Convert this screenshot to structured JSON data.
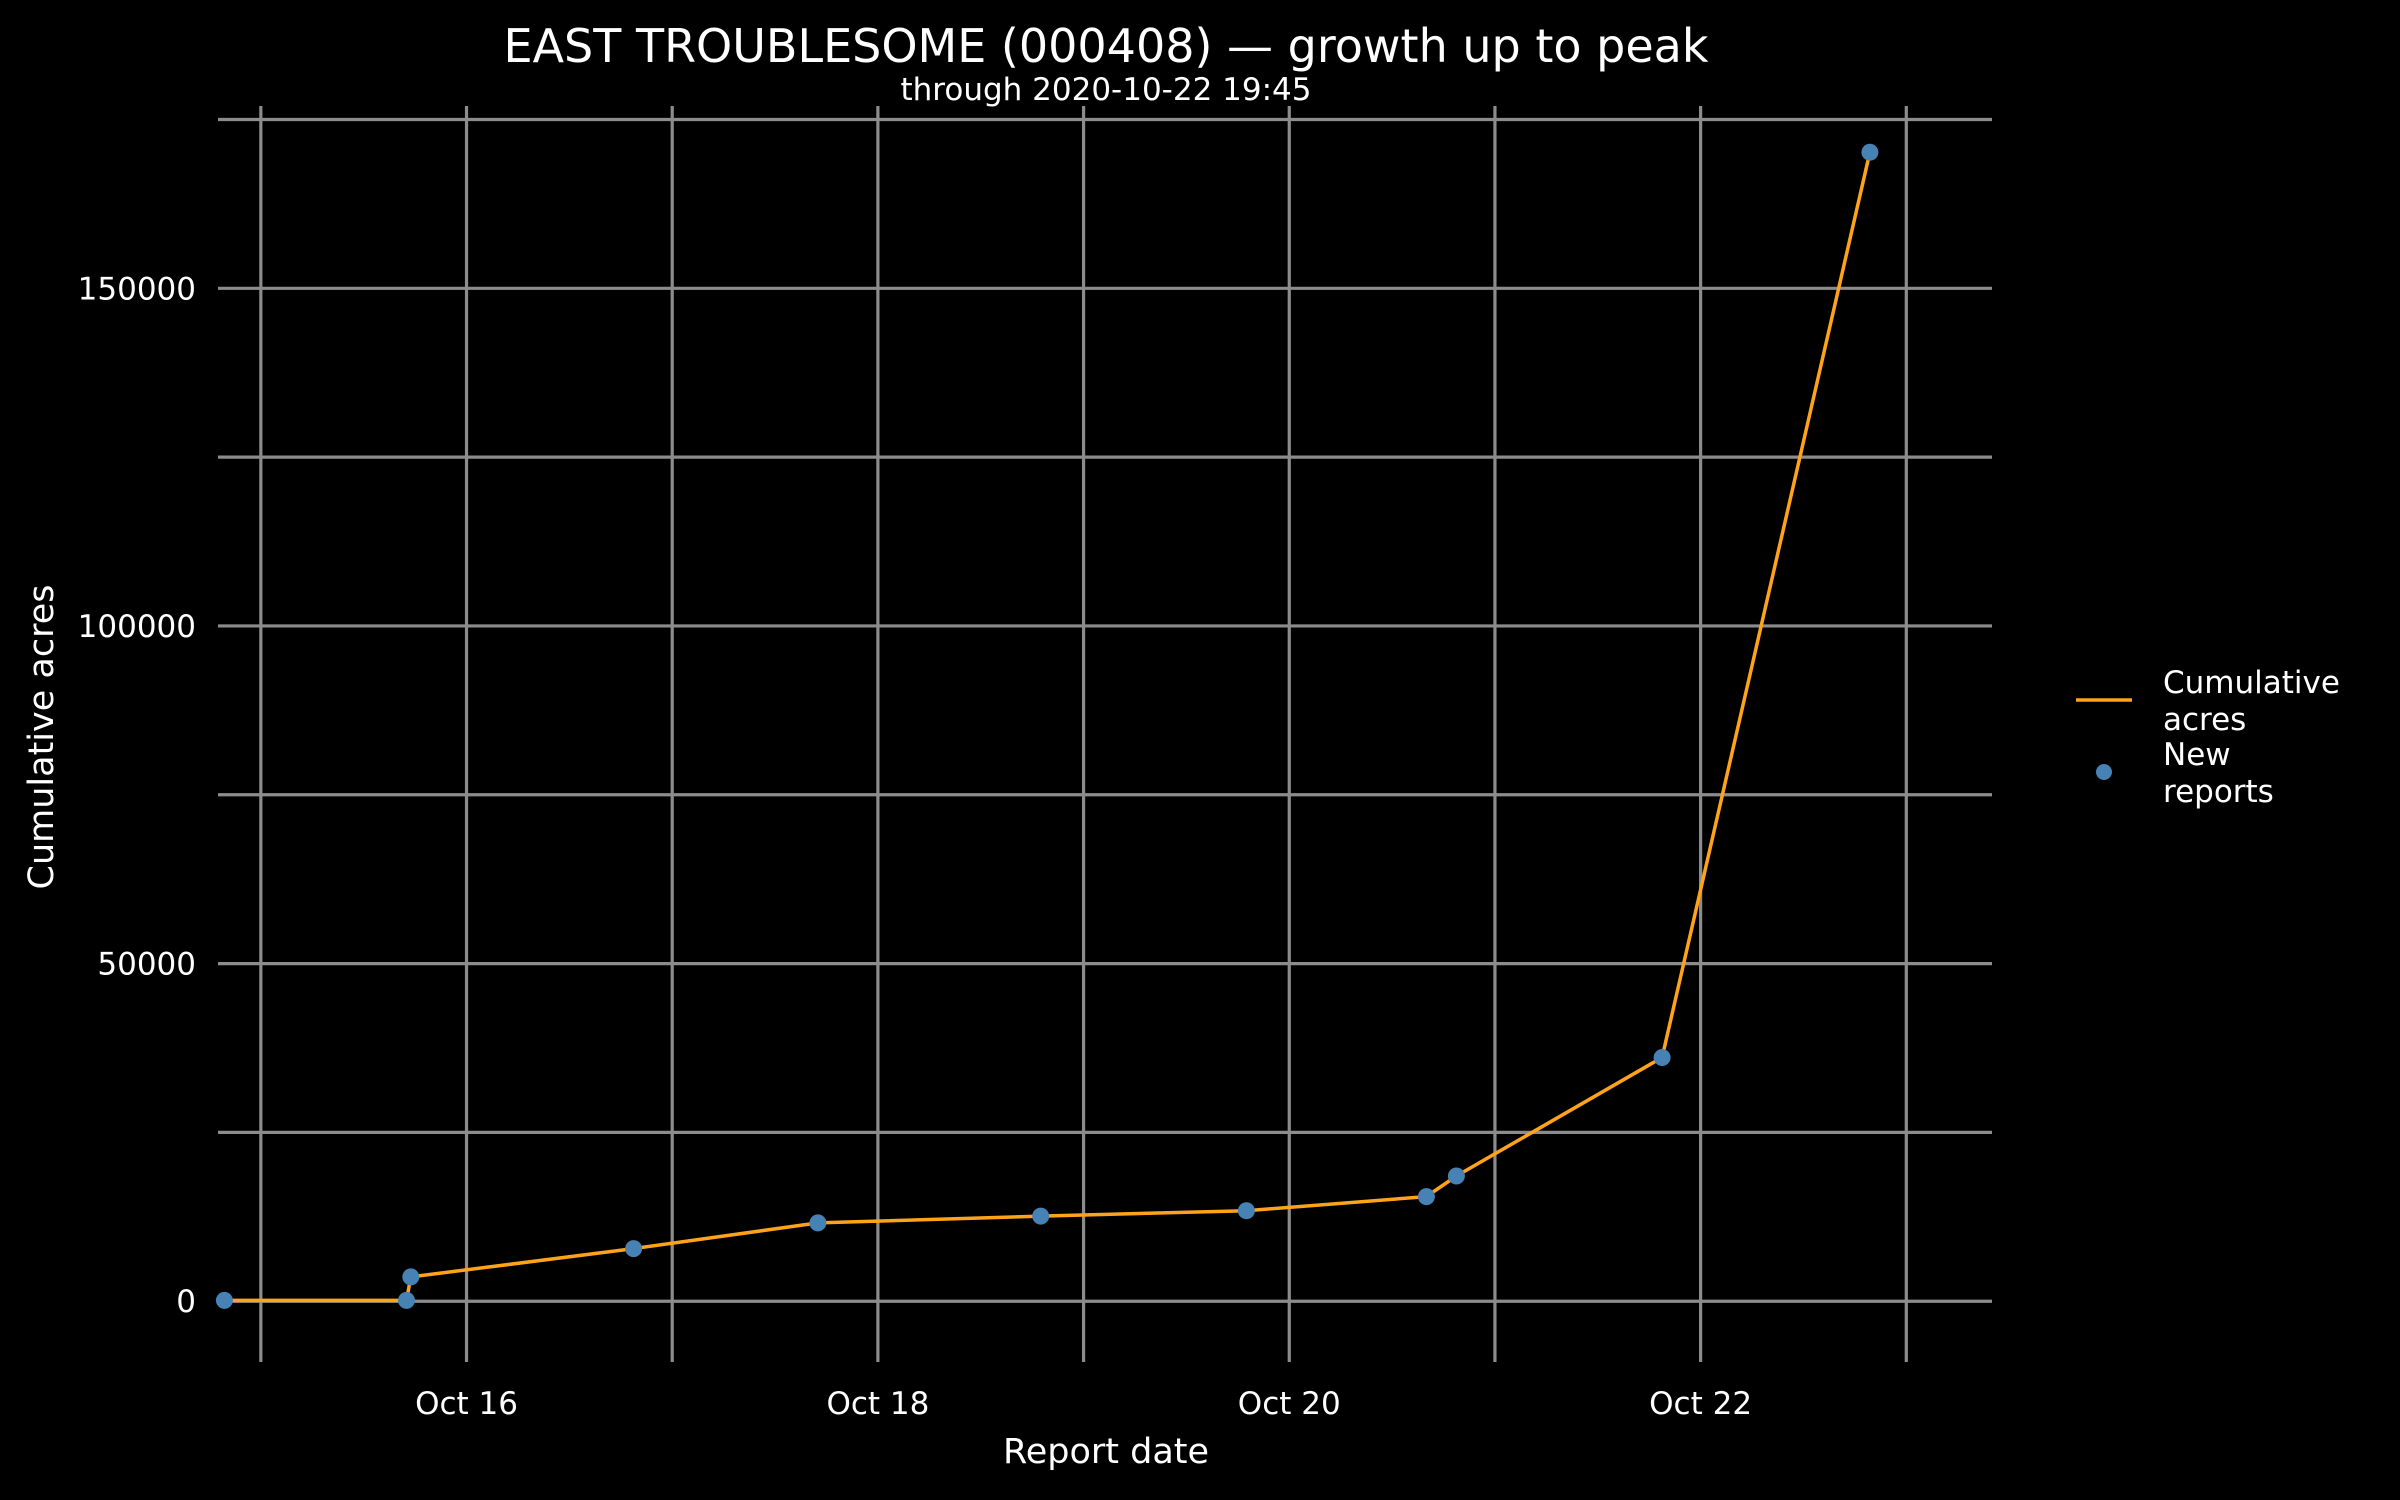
{
  "chart_data": {
    "type": "line",
    "title": "EAST TROUBLESOME (000408) — growth up to peak",
    "subtitle": "through 2020-10-22 19:45",
    "xlabel": "Report date",
    "ylabel": "Cumulative acres",
    "x_ticks": [
      {
        "date": "2020-10-16",
        "label": "Oct 16"
      },
      {
        "date": "2020-10-18",
        "label": "Oct 18"
      },
      {
        "date": "2020-10-20",
        "label": "Oct 20"
      },
      {
        "date": "2020-10-22",
        "label": "Oct 22"
      }
    ],
    "y_ticks": [
      0,
      50000,
      100000,
      150000
    ],
    "xlim": [
      "2020-10-14 19:00",
      "2020-10-23 10:00"
    ],
    "ylim": [
      -9000,
      177000
    ],
    "grid": true,
    "legend_position": "right",
    "series": [
      {
        "name": "Cumulative acres",
        "mark": "line",
        "color": "#ffa31a",
        "points": [
          {
            "x": "2020-10-14 19:45",
            "y": 125
          },
          {
            "x": "2020-10-15 17:00",
            "y": 125
          },
          {
            "x": "2020-10-15 17:30",
            "y": 3600
          },
          {
            "x": "2020-10-16 19:30",
            "y": 7800
          },
          {
            "x": "2020-10-17 17:00",
            "y": 11600
          },
          {
            "x": "2020-10-18 19:00",
            "y": 12600
          },
          {
            "x": "2020-10-19 19:00",
            "y": 13400
          },
          {
            "x": "2020-10-20 16:00",
            "y": 15500
          },
          {
            "x": "2020-10-20 19:30",
            "y": 18550
          },
          {
            "x": "2020-10-21 19:30",
            "y": 36100
          },
          {
            "x": "2020-10-22 19:45",
            "y": 170163
          }
        ]
      },
      {
        "name": "New reports",
        "mark": "point",
        "color": "#4682b4",
        "points": [
          {
            "x": "2020-10-14 19:45",
            "y": 125
          },
          {
            "x": "2020-10-15 17:00",
            "y": 125
          },
          {
            "x": "2020-10-15 17:30",
            "y": 3600
          },
          {
            "x": "2020-10-16 19:30",
            "y": 7800
          },
          {
            "x": "2020-10-17 17:00",
            "y": 11600
          },
          {
            "x": "2020-10-18 19:00",
            "y": 12600
          },
          {
            "x": "2020-10-19 19:00",
            "y": 13400
          },
          {
            "x": "2020-10-20 16:00",
            "y": 15500
          },
          {
            "x": "2020-10-20 19:30",
            "y": 18550
          },
          {
            "x": "2020-10-21 19:30",
            "y": 36100
          },
          {
            "x": "2020-10-22 19:45",
            "y": 170163
          }
        ]
      }
    ],
    "legend": {
      "line_label": [
        "Cumulative",
        "acres"
      ],
      "point_label": [
        "New",
        "reports"
      ]
    }
  }
}
